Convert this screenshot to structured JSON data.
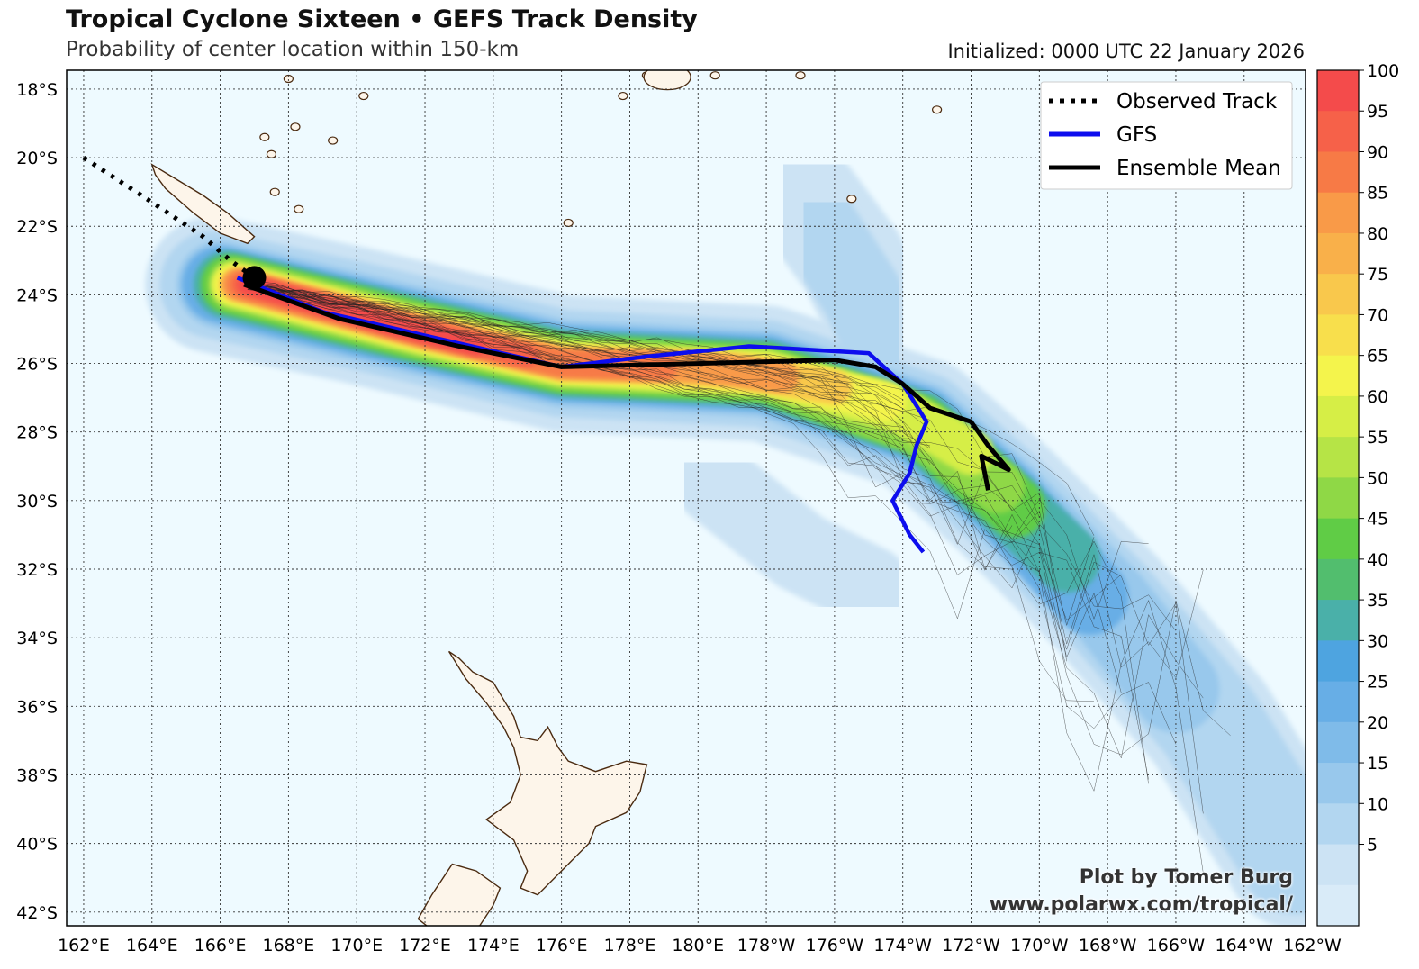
{
  "header": {
    "title": "Tropical Cyclone Sixteen • GEFS Track Density",
    "subtitle": "Probability of center location within 150-km",
    "initialized": "Initialized: 0000 UTC 22 January 2026"
  },
  "credit": {
    "line1": "Plot by Tomer Burg",
    "line2": "www.polarwx.com/tropical/"
  },
  "legend": {
    "observed": "Observed Track",
    "gfs": "GFS",
    "mean": "Ensemble Mean"
  },
  "colors": {
    "ocean": "#eefaff",
    "land": "#fdf5ea",
    "coast": "#4a2a10",
    "gfs": "#0d0dee",
    "mean": "#000000",
    "observed": "#000000"
  },
  "axes": {
    "lon_labels": [
      "162°E",
      "164°E",
      "166°E",
      "168°E",
      "170°E",
      "172°E",
      "174°E",
      "176°E",
      "178°E",
      "180°E",
      "178°W",
      "176°W",
      "174°W",
      "172°W",
      "170°W",
      "168°W",
      "166°W",
      "164°W",
      "162°W"
    ],
    "lat_labels": [
      "18°S",
      "20°S",
      "22°S",
      "24°S",
      "26°S",
      "28°S",
      "30°S",
      "32°S",
      "34°S",
      "36°S",
      "38°S",
      "40°S",
      "42°S"
    ]
  },
  "colorbar": {
    "ticks": [
      "100",
      "95",
      "90",
      "85",
      "80",
      "75",
      "70",
      "65",
      "60",
      "55",
      "50",
      "45",
      "40",
      "35",
      "30",
      "25",
      "20",
      "15",
      "10",
      "5"
    ],
    "colors": [
      "#f44b4b",
      "#f66149",
      "#f77a46",
      "#f99a48",
      "#f9b04a",
      "#f9c84c",
      "#f8df4c",
      "#f4f44c",
      "#d6ee46",
      "#b6e446",
      "#8fd846",
      "#60cc46",
      "#52be6e",
      "#4ab0a9",
      "#4ea4e0",
      "#67aee6",
      "#7fbbe9",
      "#98c8ec",
      "#b2d6f0",
      "#cce3f4",
      "#d9ebf8"
    ]
  },
  "chart_data": {
    "type": "map",
    "title": "Tropical Cyclone Sixteen • GEFS Track Density",
    "subtitle": "Probability of center location within 150-km",
    "lon_range": [
      162,
      198
    ],
    "lat_range": [
      -42.4,
      -17.5
    ],
    "colorbar_range": [
      0,
      100
    ],
    "legend_position": "top-right",
    "grid": true,
    "observed_track": [
      [
        162,
        -20.0
      ],
      [
        164,
        -21.3
      ],
      [
        165.5,
        -22.3
      ],
      [
        166.3,
        -23.0
      ],
      [
        167.0,
        -23.5
      ]
    ],
    "current_position": [
      167.0,
      -23.5
    ],
    "gfs_track": [
      [
        166.5,
        -23.5
      ],
      [
        169.0,
        -24.5
      ],
      [
        172.5,
        -25.3
      ],
      [
        176.0,
        -26.1
      ],
      [
        178.5,
        -25.8
      ],
      [
        181.5,
        -25.5
      ],
      [
        185.0,
        -25.7
      ],
      [
        186.0,
        -26.6
      ],
      [
        186.7,
        -27.7
      ],
      [
        186.4,
        -28.4
      ],
      [
        186.2,
        -29.2
      ],
      [
        185.7,
        -30.0
      ],
      [
        186.2,
        -31.0
      ],
      [
        186.6,
        -31.5
      ]
    ],
    "ensemble_mean_track": [
      [
        166.7,
        -23.7
      ],
      [
        169.5,
        -24.7
      ],
      [
        173.0,
        -25.5
      ],
      [
        176.0,
        -26.1
      ],
      [
        180.0,
        -26.0
      ],
      [
        184.0,
        -25.9
      ],
      [
        185.2,
        -26.1
      ],
      [
        186.0,
        -26.6
      ],
      [
        186.8,
        -27.3
      ],
      [
        188.0,
        -27.7
      ],
      [
        188.5,
        -28.4
      ],
      [
        189.1,
        -29.1
      ],
      [
        188.3,
        -28.7
      ],
      [
        188.5,
        -29.7
      ]
    ]
  }
}
